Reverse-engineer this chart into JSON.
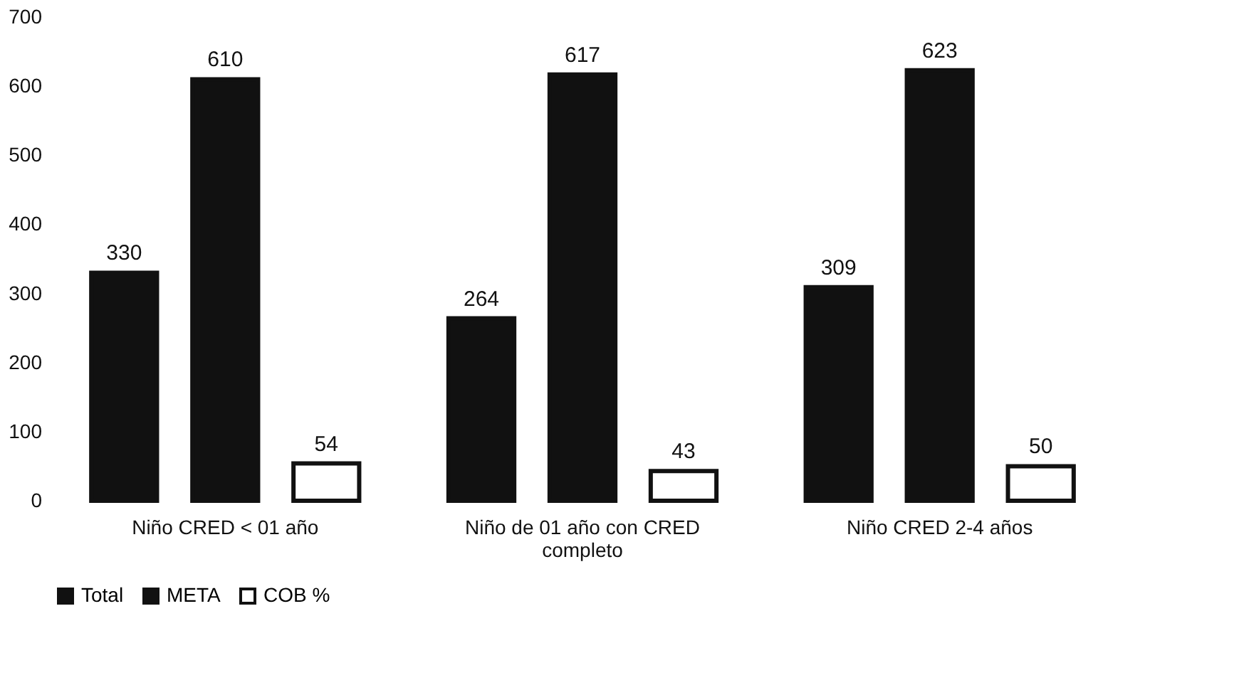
{
  "chart_data": {
    "type": "bar",
    "categories": [
      "Niño CRED < 01 año",
      "Niño de 01 año con CRED completo",
      "Niño CRED 2-4 años"
    ],
    "series": [
      {
        "name": "Total",
        "color": "#111111",
        "values": [
          330,
          264,
          309
        ]
      },
      {
        "name": "META",
        "color": "#111111",
        "values": [
          610,
          617,
          623
        ]
      },
      {
        "name": "COB %",
        "color": "#ffffff",
        "values": [
          54,
          43,
          50
        ]
      }
    ],
    "ylim": [
      0,
      700
    ],
    "yticks": [
      0,
      100,
      200,
      300,
      400,
      500,
      600,
      700
    ],
    "data_labels": true,
    "legend": "bottom",
    "grid": false
  }
}
